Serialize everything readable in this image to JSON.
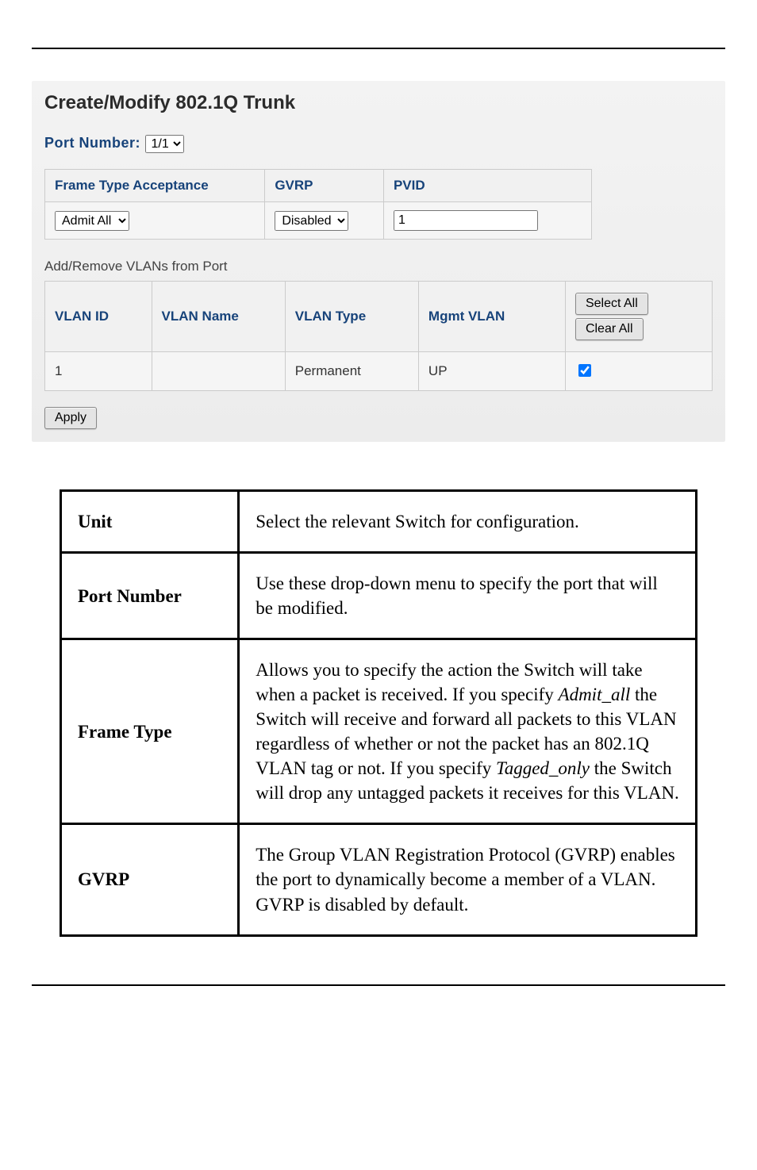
{
  "panel": {
    "title": "Create/Modify 802.1Q Trunk",
    "port_label": "Port Number:",
    "port_options": [
      "1/1"
    ],
    "port_selected": "1/1",
    "cfg_headers": {
      "frame_type": "Frame Type Acceptance",
      "gvrp": "GVRP",
      "pvid": "PVID"
    },
    "frame_type_options": [
      "Admit All"
    ],
    "frame_type_selected": "Admit All",
    "gvrp_options": [
      "Disabled"
    ],
    "gvrp_selected": "Disabled",
    "pvid_value": "1",
    "subhead": "Add/Remove VLANs from Port",
    "vlan_headers": {
      "id": "VLAN ID",
      "name": "VLAN Name",
      "type": "VLAN Type",
      "mgmt": "Mgmt VLAN"
    },
    "select_all_label": "Select All",
    "clear_all_label": "Clear All",
    "vlan_rows": [
      {
        "id": "1",
        "name": "",
        "type": "Permanent",
        "mgmt": "UP",
        "checked": true
      }
    ],
    "apply_label": "Apply"
  },
  "desc": {
    "rows": [
      {
        "term": "Unit",
        "def_html": "Select the relevant Switch for configuration."
      },
      {
        "term": "Port Number",
        "def_html": "Use these drop-down menu to specify the port that will be modified."
      },
      {
        "term": "Frame Type",
        "def_html": "Allows you to specify the action the Switch will take when a packet is received. If you specify <span class=\"ital\">Admit_all</span> the Switch will receive and forward all packets to this VLAN regardless of whether or not the packet has an 802.1Q VLAN tag or not. If you specify <span class=\"ital\">Tagged_only</span> the Switch will drop any untagged packets it receives for this VLAN."
      },
      {
        "term": "GVRP",
        "def_html": "The Group VLAN Registration Protocol (GVRP) enables the port to dynamically become a member of a VLAN. GVRP is disabled by default."
      }
    ]
  },
  "colors": {
    "header_text": "#17437a",
    "border_gray": "#cbcbcb",
    "panel_bg": "#f1f1f1",
    "cell_bg": "#f5f5f5",
    "black_border": "#000000"
  }
}
